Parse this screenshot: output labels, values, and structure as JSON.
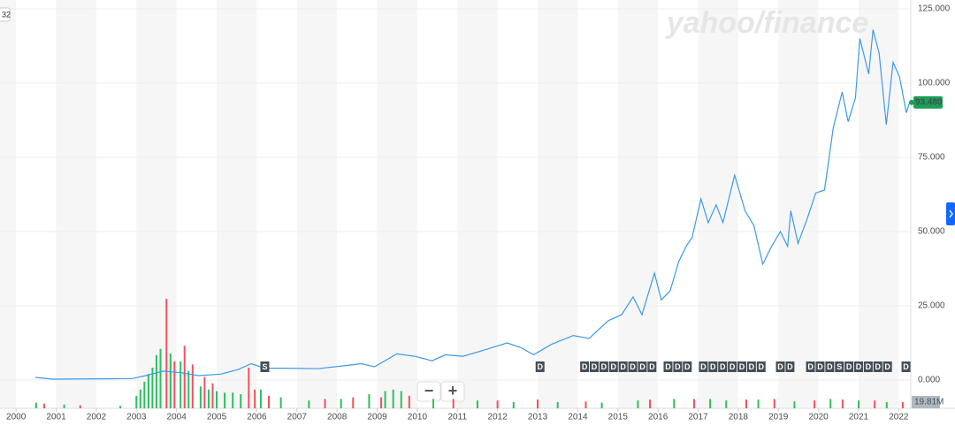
{
  "chart_data": {
    "type": "line",
    "watermark": "yahoo/finance",
    "corner_label": "32",
    "zoom_out": "−",
    "zoom_in": "+",
    "xlim": [
      1999.6,
      2022.3
    ],
    "xticks": [
      2000,
      2001,
      2002,
      2003,
      2004,
      2005,
      2006,
      2007,
      2008,
      2009,
      2010,
      2011,
      2012,
      2013,
      2014,
      2015,
      2016,
      2017,
      2018,
      2019,
      2020,
      2021,
      2022
    ],
    "ylim": [
      0,
      125
    ],
    "yticks": [
      {
        "value": 0,
        "label": "0.000"
      },
      {
        "value": 25,
        "label": "25.000"
      },
      {
        "value": 50,
        "label": "50.000"
      },
      {
        "value": 75,
        "label": "75.000"
      },
      {
        "value": 100,
        "label": "100.000"
      },
      {
        "value": 125,
        "label": "125.000"
      }
    ],
    "grid": true,
    "series": [
      {
        "color": "#3d9ae8",
        "x": [
          2000.48,
          2000.92,
          2002.9,
          2003.23,
          2003.67,
          2004.1,
          2004.55,
          2005.1,
          2005.53,
          2005.86,
          2006.2,
          2006.85,
          2007.51,
          2008.17,
          2008.6,
          2008.94,
          2009.49,
          2009.93,
          2010.37,
          2010.7,
          2011.14,
          2011.64,
          2012.24,
          2012.57,
          2012.9,
          2013.34,
          2013.89,
          2014.28,
          2014.76,
          2015.09,
          2015.38,
          2015.6,
          2015.91,
          2016.08,
          2016.3,
          2016.52,
          2016.7,
          2016.85,
          2017.07,
          2017.25,
          2017.45,
          2017.62,
          2017.91,
          2018.17,
          2018.39,
          2018.61,
          2018.83,
          2019.05,
          2019.23,
          2019.31,
          2019.49,
          2019.71,
          2019.93,
          2020.15,
          2020.37,
          2020.59,
          2020.74,
          2020.92,
          2021.03,
          2021.25,
          2021.36,
          2021.51,
          2021.69,
          2021.86,
          2022.02,
          2022.19,
          2022.27
        ],
        "values": [
          0.9,
          0.3,
          0.5,
          1.5,
          3,
          2.5,
          1.5,
          2,
          3.5,
          5.5,
          4,
          4,
          3.8,
          4.8,
          5.5,
          4.5,
          8.8,
          8,
          6.5,
          8.5,
          8,
          10,
          12.5,
          11,
          8.5,
          12,
          15,
          14,
          20,
          22,
          28,
          22,
          36,
          27,
          30,
          40,
          45,
          48,
          61,
          53,
          59,
          53,
          69,
          57,
          52,
          39,
          45,
          50,
          45,
          57,
          46,
          54,
          63,
          64,
          85,
          97,
          87,
          95,
          115,
          103,
          118,
          110,
          86,
          107,
          102,
          90,
          93.48
        ]
      }
    ],
    "last_price": {
      "value": 93.48,
      "label": "93.480"
    },
    "volume": {
      "vlim": [
        0,
        400
      ],
      "last": {
        "value": 19.81,
        "label": "19.81M"
      },
      "up": {
        "color": "#2dbf5f",
        "x": [
          2000.5,
          2001.2,
          2002.6,
          2003.0,
          2003.1,
          2003.2,
          2003.3,
          2003.4,
          2003.5,
          2003.6,
          2003.85,
          2004.1,
          2004.3,
          2004.6,
          2004.8,
          2005.0,
          2005.2,
          2005.4,
          2005.6,
          2006.1,
          2006.6,
          2007.3,
          2008.1,
          2008.8,
          2009.2,
          2009.4,
          2009.6,
          2010.4,
          2011.5,
          2012.4,
          2013.5,
          2014.6,
          2015.5,
          2016.4,
          2017.3,
          2017.7,
          2018.5,
          2019.4,
          2020.3,
          2021.0,
          2021.7
        ],
        "values": [
          18,
          12,
          8,
          40,
          60,
          85,
          110,
          130,
          170,
          190,
          175,
          150,
          120,
          70,
          60,
          55,
          50,
          50,
          45,
          60,
          35,
          25,
          30,
          45,
          55,
          60,
          55,
          30,
          25,
          20,
          20,
          18,
          25,
          30,
          30,
          25,
          28,
          22,
          30,
          25,
          20
        ]
      },
      "down": {
        "color": "#f0515f",
        "x": [
          2000.7,
          2001.6,
          2003.75,
          2003.95,
          2004.2,
          2004.4,
          2004.7,
          2004.9,
          2005.8,
          2005.95,
          2006.3,
          2007.7,
          2008.4,
          2009.1,
          2009.8,
          2010.9,
          2012.0,
          2013.0,
          2014.2,
          2015.8,
          2016.9,
          2018.2,
          2018.9,
          2019.9,
          2020.6,
          2021.4,
          2022.1
        ],
        "values": [
          15,
          10,
          350,
          150,
          200,
          140,
          100,
          80,
          130,
          60,
          40,
          30,
          35,
          35,
          40,
          30,
          25,
          28,
          22,
          28,
          30,
          28,
          30,
          25,
          28,
          25,
          19.81
        ]
      }
    },
    "events": [
      {
        "x": 2006.2,
        "label": "S"
      },
      {
        "x": 2013.06,
        "label": "D"
      },
      {
        "x": 2014.17,
        "label": "D"
      },
      {
        "x": 2014.41,
        "label": "D"
      },
      {
        "x": 2014.65,
        "label": "D"
      },
      {
        "x": 2014.89,
        "label": "D"
      },
      {
        "x": 2015.13,
        "label": "D"
      },
      {
        "x": 2015.37,
        "label": "D"
      },
      {
        "x": 2015.61,
        "label": "D"
      },
      {
        "x": 2015.85,
        "label": "D"
      },
      {
        "x": 2016.25,
        "label": "D"
      },
      {
        "x": 2016.49,
        "label": "D"
      },
      {
        "x": 2016.73,
        "label": "D"
      },
      {
        "x": 2017.13,
        "label": "D"
      },
      {
        "x": 2017.37,
        "label": "D"
      },
      {
        "x": 2017.61,
        "label": "D"
      },
      {
        "x": 2017.85,
        "label": "D"
      },
      {
        "x": 2018.09,
        "label": "D"
      },
      {
        "x": 2018.33,
        "label": "D"
      },
      {
        "x": 2018.57,
        "label": "D"
      },
      {
        "x": 2019.05,
        "label": "D"
      },
      {
        "x": 2019.29,
        "label": "D"
      },
      {
        "x": 2019.8,
        "label": "D"
      },
      {
        "x": 2020.04,
        "label": "D"
      },
      {
        "x": 2020.28,
        "label": "D"
      },
      {
        "x": 2020.52,
        "label": "S"
      },
      {
        "x": 2020.76,
        "label": "D"
      },
      {
        "x": 2021.0,
        "label": "D"
      },
      {
        "x": 2021.24,
        "label": "D"
      },
      {
        "x": 2021.48,
        "label": "D"
      },
      {
        "x": 2021.72,
        "label": "D"
      },
      {
        "x": 2022.18,
        "label": "D"
      }
    ]
  }
}
